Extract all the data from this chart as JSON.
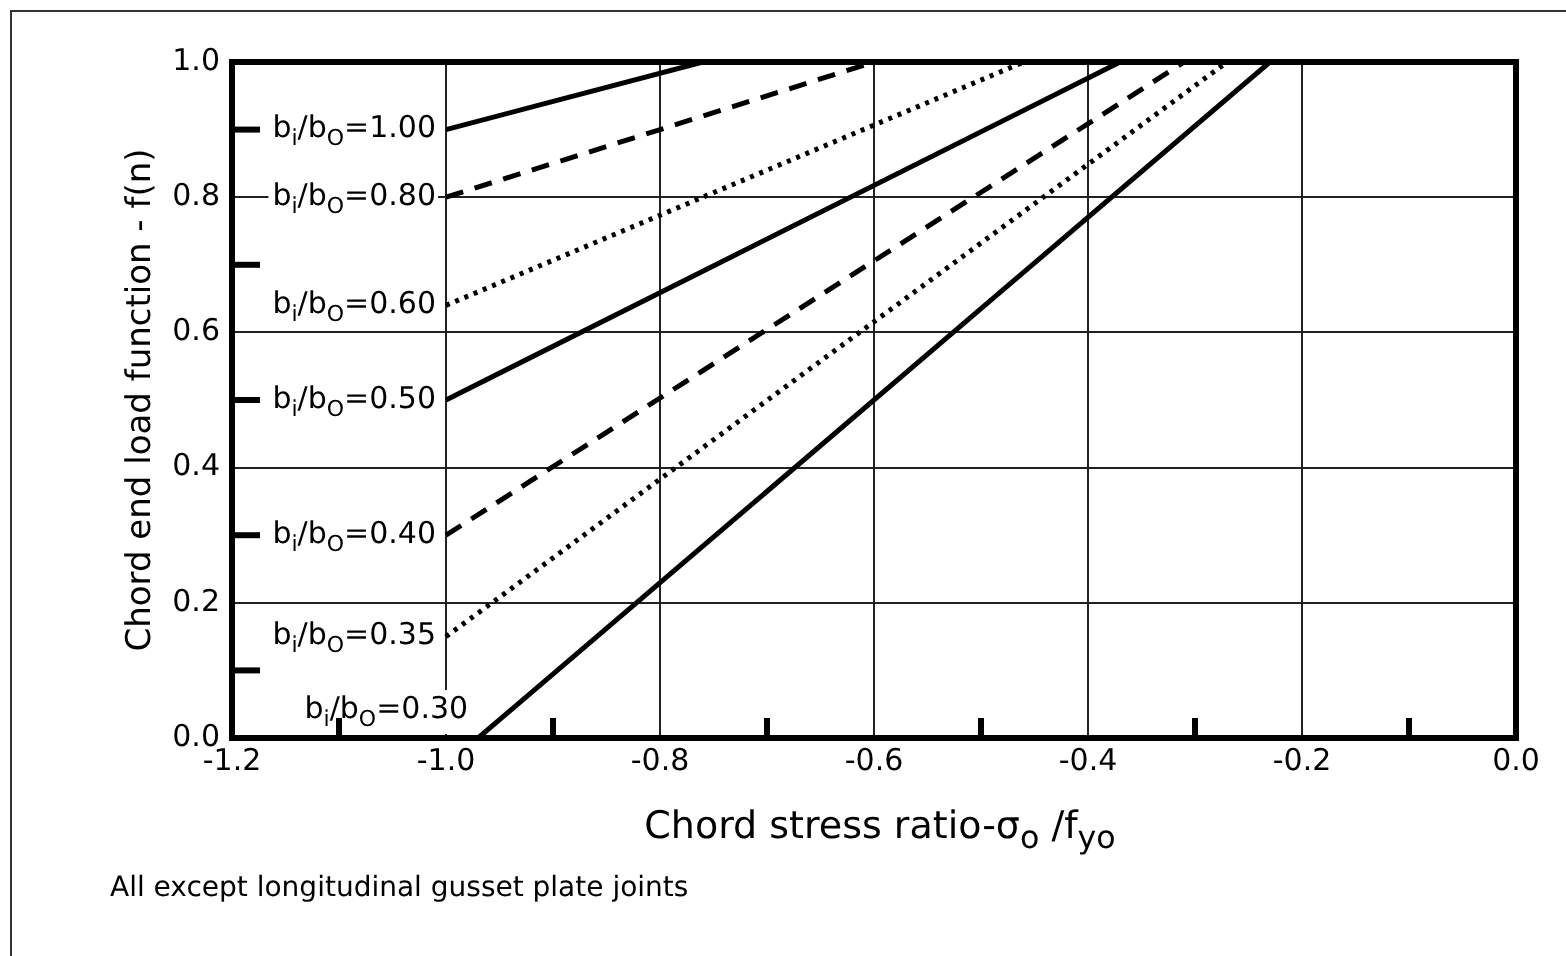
{
  "chart_data": {
    "type": "line",
    "xlabel": "Chord stress ratio-σ$_{o}$ /f$_{yo}$",
    "ylabel": "Chord end load function - f(n)",
    "annotations": [
      "All except longitudinal gusset plate joints"
    ],
    "xlim": [
      -1.2,
      0.0
    ],
    "xticks": [
      -1.2,
      {
        "value": -1.1,
        "label": null
      },
      {
        "value": -1.0,
        "label": "-1.0"
      },
      {
        "value": -0.9,
        "label": null
      },
      -0.8,
      {
        "value": -0.7,
        "label": null
      },
      -0.6,
      {
        "value": -0.5,
        "label": null
      },
      -0.4,
      {
        "value": -0.3,
        "label": null
      },
      -0.2,
      {
        "value": -0.1,
        "label": null
      },
      {
        "value": 0.0,
        "label": "0.0"
      }
    ],
    "ylim": [
      0.0,
      1.0
    ],
    "yticks": [
      {
        "value": 0.0,
        "label": "0.0"
      },
      {
        "value": 0.1,
        "label": null
      },
      0.2,
      {
        "value": 0.3,
        "label": null
      },
      0.4,
      {
        "value": 0.5,
        "label": null
      },
      0.6,
      {
        "value": 0.7,
        "label": null
      },
      0.8,
      {
        "value": 0.9,
        "label": null
      },
      {
        "value": 1.0,
        "label": "1.0"
      }
    ],
    "grid": true,
    "legend": false,
    "marker": "none",
    "series": [
      {
        "name": "b$_{i}$/b$_{O}$=1.00",
        "color": "#000000",
        "line_style": "solid",
        "x": [
          -1.0,
          -0.76
        ],
        "values": [
          0.9,
          1.0
        ]
      },
      {
        "name": "b$_{i}$/b$_{O}$=0.80",
        "color": "#000000",
        "line_style": "dashed",
        "x": [
          -1.0,
          -0.6
        ],
        "values": [
          0.8,
          1.0
        ]
      },
      {
        "name": "b$_{i}$/b$_{O}$=0.60",
        "color": "#000000",
        "line_style": "dotted",
        "x": [
          -1.0,
          -0.46
        ],
        "values": [
          0.64,
          1.0
        ]
      },
      {
        "name": "b$_{i}$/b$_{O}$=0.50",
        "color": "#000000",
        "line_style": "solid",
        "x": [
          -1.0,
          -0.37
        ],
        "values": [
          0.5,
          1.0
        ]
      },
      {
        "name": "b$_{i}$/b$_{O}$=0.40",
        "color": "#000000",
        "line_style": "dashed",
        "x": [
          -1.0,
          -0.31
        ],
        "values": [
          0.3,
          1.0
        ]
      },
      {
        "name": "b$_{i}$/b$_{O}$=0.35",
        "color": "#000000",
        "line_style": "dotted",
        "x": [
          -1.0,
          -0.27
        ],
        "values": [
          0.15,
          1.0
        ]
      },
      {
        "name": "b$_{i}$/b$_{O}$=0.30",
        "color": "#000000",
        "line_style": "solid",
        "x": [
          -0.97,
          -0.23
        ],
        "values": [
          0.0,
          1.0
        ]
      }
    ]
  }
}
